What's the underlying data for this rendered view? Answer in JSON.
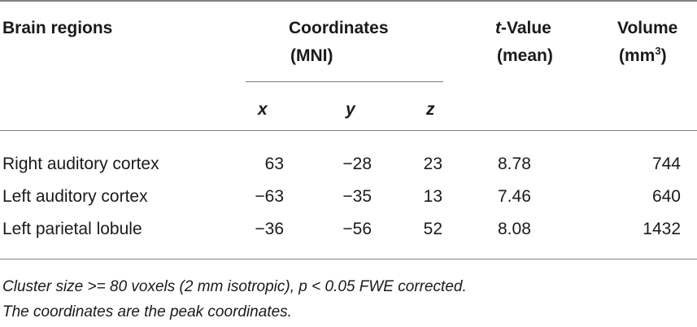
{
  "table": {
    "headers": {
      "region": "Brain regions",
      "coordinates_line1": "Coordinates",
      "coordinates_line2": "(MNI)",
      "t_value_italic": "t",
      "t_value_rest": "-Value",
      "t_value_line2": "(mean)",
      "volume_line1": "Volume",
      "volume_line2_prefix": "(mm",
      "volume_line2_sup": "3",
      "volume_line2_suffix": ")",
      "axis_x": "x",
      "axis_y": "y",
      "axis_z": "z"
    },
    "rows": [
      {
        "region": "Right auditory cortex",
        "x": "63",
        "y": "−28",
        "z": "23",
        "t": "8.78",
        "volume": "744"
      },
      {
        "region": "Left auditory cortex",
        "x": "−63",
        "y": "−35",
        "z": "13",
        "t": "7.46",
        "volume": "640"
      },
      {
        "region": "Left parietal lobule",
        "x": "−36",
        "y": "−56",
        "z": "52",
        "t": "8.08",
        "volume": "1432"
      }
    ],
    "footnotes": [
      "Cluster size >= 80 voxels (2 mm isotropic), p < 0.05 FWE corrected.",
      "The coordinates are the peak coordinates."
    ]
  }
}
